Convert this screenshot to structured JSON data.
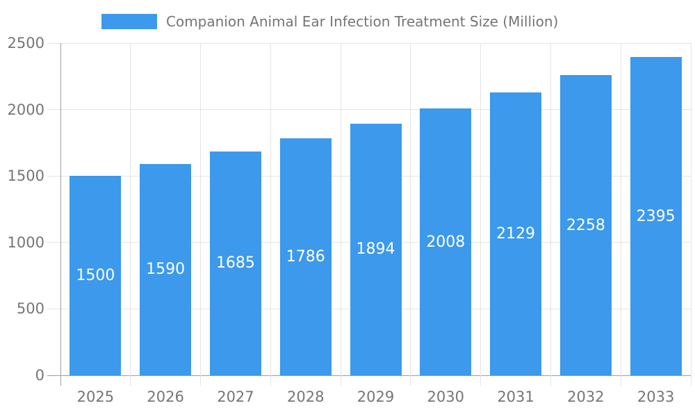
{
  "chart_data": {
    "type": "bar",
    "title": "Companion Animal Ear Infection Treatment Size (Million)",
    "categories": [
      "2025",
      "2026",
      "2027",
      "2028",
      "2029",
      "2030",
      "2031",
      "2032",
      "2033"
    ],
    "values": [
      1500,
      1590,
      1685,
      1786,
      1894,
      2008,
      2129,
      2258,
      2395
    ],
    "xlabel": "",
    "ylabel": "",
    "ylim": [
      0,
      2500
    ],
    "yticks": [
      0,
      500,
      1000,
      1500,
      2000,
      2500
    ],
    "grid": true,
    "legend_position": "top",
    "value_label_position": "inside-center",
    "colors": {
      "bar": "#3C99EB",
      "value_label": "#FFFFFF",
      "axis_text": "#757575",
      "grid_line": "#E4E4E4",
      "axis_line": "#9E9E9E",
      "background": "#FFFFFF"
    }
  }
}
